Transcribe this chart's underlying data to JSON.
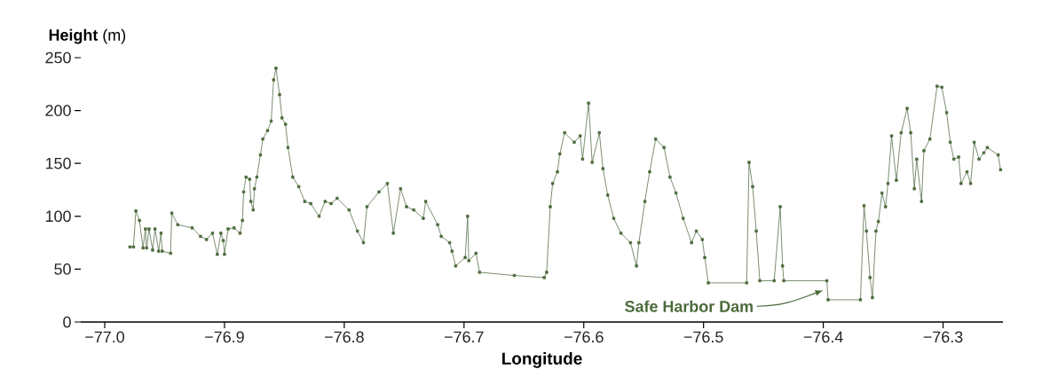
{
  "chart_data": {
    "type": "line",
    "xlabel": "Longitude",
    "ylabel": "**Height** (m)",
    "xlim": [
      -77.02,
      -76.25
    ],
    "ylim": [
      0,
      250
    ],
    "xticks": [
      {
        "value": -77.0,
        "label": "−77.0"
      },
      {
        "value": -76.9,
        "label": "−76.9"
      },
      {
        "value": -76.8,
        "label": "−76.8"
      },
      {
        "value": -76.7,
        "label": "−76.7"
      },
      {
        "value": -76.6,
        "label": "−76.6"
      },
      {
        "value": -76.5,
        "label": "−76.5"
      },
      {
        "value": -76.4,
        "label": "−76.4"
      },
      {
        "value": -76.3,
        "label": "−76.3"
      }
    ],
    "yticks": [
      0,
      50,
      100,
      150,
      200,
      250
    ],
    "marker": "square",
    "line_style": "solid",
    "x": [
      -76.979,
      -76.976,
      -76.974,
      -76.971,
      -76.968,
      -76.966,
      -76.965,
      -76.963,
      -76.96,
      -76.958,
      -76.955,
      -76.953,
      -76.952,
      -76.945,
      -76.944,
      -76.939,
      -76.927,
      -76.92,
      -76.915,
      -76.91,
      -76.906,
      -76.903,
      -76.901,
      -76.9,
      -76.897,
      -76.892,
      -76.887,
      -76.885,
      -76.884,
      -76.882,
      -76.879,
      -76.878,
      -76.876,
      -76.875,
      -76.873,
      -76.87,
      -76.868,
      -76.864,
      -76.861,
      -76.859,
      -76.857,
      -76.854,
      -76.852,
      -76.849,
      -76.847,
      -76.843,
      -76.838,
      -76.833,
      -76.828,
      -76.821,
      -76.816,
      -76.811,
      -76.806,
      -76.796,
      -76.789,
      -76.784,
      -76.781,
      -76.771,
      -76.764,
      -76.759,
      -76.753,
      -76.748,
      -76.742,
      -76.734,
      -76.732,
      -76.722,
      -76.719,
      -76.712,
      -76.71,
      -76.707,
      -76.699,
      -76.697,
      -76.696,
      -76.69,
      -76.687,
      -76.658,
      -76.633,
      -76.631,
      -76.628,
      -76.626,
      -76.622,
      -76.62,
      -76.616,
      -76.608,
      -76.603,
      -76.601,
      -76.596,
      -76.593,
      -76.587,
      -76.584,
      -76.58,
      -76.575,
      -76.569,
      -76.561,
      -76.556,
      -76.554,
      -76.549,
      -76.545,
      -76.54,
      -76.533,
      -76.528,
      -76.523,
      -76.517,
      -76.51,
      -76.506,
      -76.501,
      -76.499,
      -76.496,
      -76.464,
      -76.462,
      -76.459,
      -76.456,
      -76.453,
      -76.441,
      -76.436,
      -76.434,
      -76.433,
      -76.397,
      -76.396,
      -76.369,
      -76.366,
      -76.364,
      -76.361,
      -76.359,
      -76.356,
      -76.354,
      -76.351,
      -76.348,
      -76.346,
      -76.343,
      -76.339,
      -76.335,
      -76.33,
      -76.327,
      -76.324,
      -76.322,
      -76.318,
      -76.316,
      -76.311,
      -76.305,
      -76.301,
      -76.297,
      -76.294,
      -76.291,
      -76.287,
      -76.285,
      -76.28,
      -76.277,
      -76.274,
      -76.27,
      -76.266,
      -76.263,
      -76.254,
      -76.252
    ],
    "series": [
      {
        "color": "#4b6b3b",
        "values": [
          71,
          71,
          105,
          96,
          70,
          88,
          70,
          88,
          68,
          88,
          67,
          84,
          67,
          65,
          103,
          92,
          89,
          81,
          78,
          84,
          64,
          84,
          77,
          64,
          88,
          89,
          84,
          96,
          123,
          137,
          135,
          114,
          106,
          126,
          137,
          158,
          173,
          181,
          190,
          229,
          240,
          215,
          193,
          187,
          165,
          137,
          128,
          114,
          112,
          100,
          114,
          112,
          117,
          106,
          86,
          75,
          109,
          123,
          131,
          84,
          126,
          109,
          106,
          98,
          114,
          92,
          81,
          75,
          67,
          53,
          61,
          100,
          58,
          65,
          47,
          44,
          42,
          47,
          109,
          131,
          142,
          159,
          179,
          170,
          176,
          154,
          207,
          151,
          179,
          145,
          120,
          98,
          84,
          75,
          53,
          75,
          114,
          142,
          173,
          165,
          137,
          122,
          98,
          75,
          86,
          78,
          61,
          37,
          37,
          151,
          128,
          86,
          39,
          39,
          109,
          53,
          39,
          39,
          21,
          21,
          110,
          86,
          42,
          23,
          86,
          95,
          122,
          109,
          131,
          176,
          134,
          179,
          202,
          179,
          126,
          154,
          114,
          162,
          173,
          223,
          222,
          198,
          170,
          154,
          156,
          131,
          142,
          131,
          170,
          154,
          160,
          165,
          158,
          144
        ]
      }
    ],
    "annotations": [
      {
        "text": "Safe Harbor Dam",
        "x": -76.4,
        "y": 30
      }
    ]
  }
}
